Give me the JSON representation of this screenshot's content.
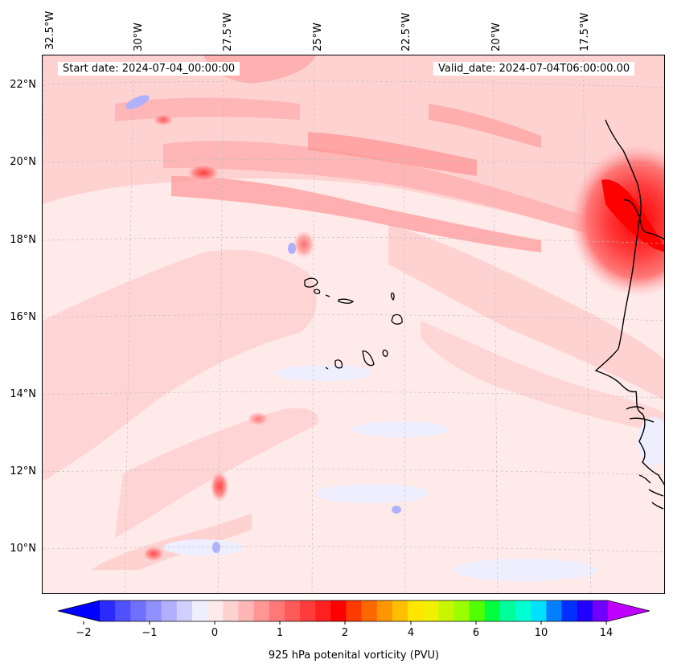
{
  "header": {
    "start_date": "Start date: 2024-07-04_00:00:00",
    "valid_date": "Valid_date: 2024-07-04T06:00:00.00"
  },
  "longitude_labels": [
    "32.5°W",
    "30°W",
    "27.5°W",
    "25°W",
    "22.5°W",
    "20°W",
    "17.5°W"
  ],
  "latitude_labels": [
    "22°N",
    "20°N",
    "18°N",
    "16°N",
    "14°N",
    "12°N",
    "10°N"
  ],
  "colorbar": {
    "title": "925 hPa potenital vorticity (PVU)",
    "tick_labels": [
      "−2",
      "−1",
      "0",
      "1",
      "2",
      "4",
      "6",
      "10",
      "14"
    ],
    "colors": [
      "#0000ff",
      "#2b2bff",
      "#5050ff",
      "#7070ff",
      "#9090ff",
      "#b0b0ff",
      "#d0d0ff",
      "#eeeeff",
      "#ffeaea",
      "#ffd2d2",
      "#ffb6b6",
      "#ff9696",
      "#ff7878",
      "#ff5a5a",
      "#ff3c3c",
      "#ff2020",
      "#ff0000",
      "#ff3a00",
      "#ff6800",
      "#ff9600",
      "#ffbf00",
      "#ffe600",
      "#f0f000",
      "#c8f500",
      "#9cff00",
      "#50ff00",
      "#00ff40",
      "#00ff9c",
      "#00ffd2",
      "#00e0ff",
      "#0080ff",
      "#0030ff",
      "#2000ff",
      "#7000ff",
      "#c000ff"
    ]
  }
}
